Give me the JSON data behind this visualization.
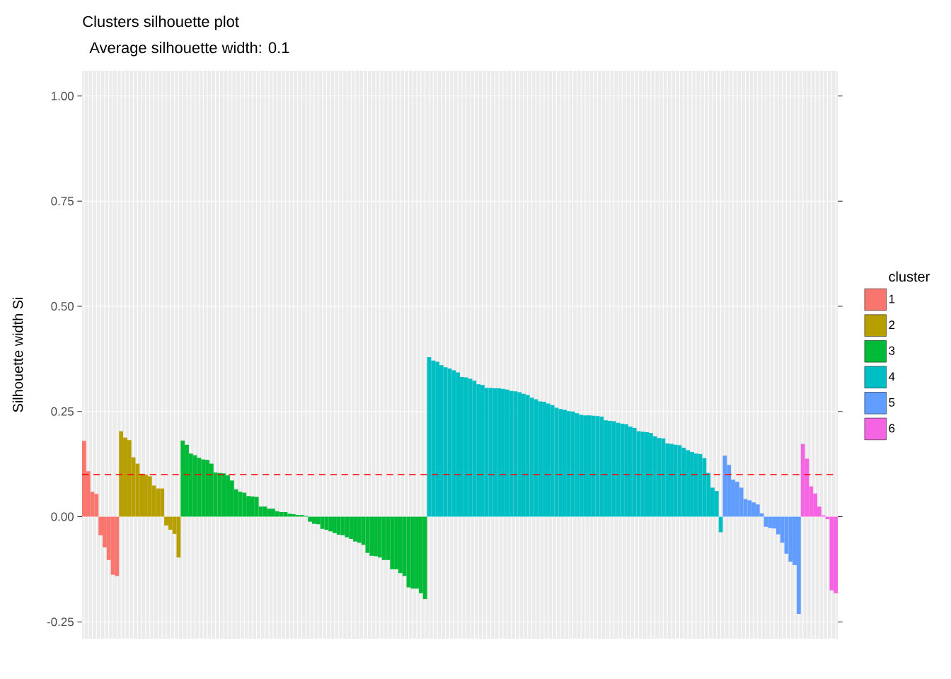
{
  "chart_data": {
    "type": "bar",
    "title": "Clusters silhouette plot",
    "subtitle": " Average silhouette width: 0.1",
    "ylabel": "Silhouette width Si",
    "legend_title": "cluster",
    "legend": "right",
    "grid": true,
    "ylim": [
      -0.29,
      1.06
    ],
    "yticks": [
      -0.25,
      {
        "value": 0,
        "label": "0.00"
      },
      0.25,
      {
        "value": 0.5,
        "label": "0.50"
      },
      0.75,
      {
        "value": 1,
        "label": "1.00"
      }
    ],
    "ref_lines": [
      {
        "axis": "y",
        "value": 0.1,
        "color": "#ff0000",
        "line_style": "dashed"
      }
    ],
    "categories": [
      null,
      null,
      null,
      null,
      null,
      null,
      null,
      null,
      null,
      null,
      null,
      null,
      null,
      null,
      null,
      null,
      null,
      null,
      null,
      null,
      null,
      null,
      null,
      null,
      null,
      null,
      null,
      null,
      null,
      null,
      null,
      null,
      null,
      null,
      null,
      null,
      null,
      null,
      null,
      null,
      null,
      null,
      null,
      null,
      null,
      null,
      null,
      null,
      null,
      null,
      null,
      null,
      null,
      null,
      null,
      null,
      null,
      null,
      null,
      null,
      null,
      null,
      null,
      null,
      null,
      null,
      null,
      null,
      null,
      null,
      null,
      null,
      null,
      null,
      null,
      null,
      null,
      null,
      null,
      null,
      null,
      null,
      null,
      null,
      null,
      null,
      null,
      null,
      null,
      null,
      null,
      null,
      null,
      null,
      null,
      null,
      null,
      null,
      null,
      null,
      null,
      null,
      null,
      null,
      null,
      null,
      null,
      null,
      null,
      null,
      null,
      null,
      null,
      null,
      null,
      null,
      null,
      null,
      null,
      null,
      null,
      null,
      null,
      null,
      null,
      null,
      null,
      null,
      null,
      null,
      null,
      null,
      null,
      null,
      null,
      null,
      null,
      null,
      null,
      null,
      null,
      null,
      null,
      null,
      null,
      null,
      null,
      null,
      null,
      null,
      null,
      null,
      null,
      null,
      null,
      null,
      null,
      null,
      null,
      null,
      null,
      null,
      null,
      null,
      null,
      null,
      null,
      null,
      null,
      null,
      null,
      null,
      null,
      null,
      null,
      null,
      null,
      null,
      null,
      null,
      null,
      null,
      null,
      null
    ],
    "series": [
      {
        "name": "1",
        "color": "#f8766d",
        "values": [
          0.18,
          0.108,
          0.059,
          0.054,
          -0.044,
          -0.073,
          -0.103,
          -0.138,
          -0.141,
          null,
          null,
          null,
          null,
          null,
          null,
          null,
          null,
          null,
          null,
          null,
          null,
          null,
          null,
          null,
          null,
          null,
          null,
          null,
          null,
          null,
          null,
          null,
          null,
          null,
          null,
          null,
          null,
          null,
          null,
          null,
          null,
          null,
          null,
          null,
          null,
          null,
          null,
          null,
          null,
          null,
          null,
          null,
          null,
          null,
          null,
          null,
          null,
          null,
          null,
          null,
          null,
          null,
          null,
          null,
          null,
          null,
          null,
          null,
          null,
          null,
          null,
          null,
          null,
          null,
          null,
          null,
          null,
          null,
          null,
          null,
          null,
          null,
          null,
          null,
          null,
          null,
          null,
          null,
          null,
          null,
          null,
          null,
          null,
          null,
          null,
          null,
          null,
          null,
          null,
          null,
          null,
          null,
          null,
          null,
          null,
          null,
          null,
          null,
          null,
          null,
          null,
          null,
          null,
          null,
          null,
          null,
          null,
          null,
          null,
          null,
          null,
          null,
          null,
          null,
          null,
          null,
          null,
          null,
          null,
          null,
          null,
          null,
          null,
          null,
          null,
          null,
          null,
          null,
          null,
          null,
          null,
          null,
          null,
          null,
          null,
          null,
          null,
          null,
          null,
          null,
          null,
          null,
          null,
          null,
          null,
          null,
          null,
          null,
          null,
          null,
          null,
          null,
          null,
          null,
          null,
          null,
          null,
          null,
          null,
          null,
          null,
          null,
          null,
          null,
          null,
          null,
          null,
          null,
          null,
          null,
          null,
          null,
          null,
          null
        ]
      },
      {
        "name": "2",
        "color": "#b79f00",
        "values": [
          null,
          null,
          null,
          null,
          null,
          null,
          null,
          null,
          null,
          0.203,
          0.188,
          0.182,
          0.141,
          0.126,
          0.102,
          0.1,
          0.096,
          0.074,
          0.067,
          0.067,
          -0.021,
          -0.031,
          -0.041,
          -0.097,
          null,
          null,
          null,
          null,
          null,
          null,
          null,
          null,
          null,
          null,
          null,
          null,
          null,
          null,
          null,
          null,
          null,
          null,
          null,
          null,
          null,
          null,
          null,
          null,
          null,
          null,
          null,
          null,
          null,
          null,
          null,
          null,
          null,
          null,
          null,
          null,
          null,
          null,
          null,
          null,
          null,
          null,
          null,
          null,
          null,
          null,
          null,
          null,
          null,
          null,
          null,
          null,
          null,
          null,
          null,
          null,
          null,
          null,
          null,
          null,
          null,
          null,
          null,
          null,
          null,
          null,
          null,
          null,
          null,
          null,
          null,
          null,
          null,
          null,
          null,
          null,
          null,
          null,
          null,
          null,
          null,
          null,
          null,
          null,
          null,
          null,
          null,
          null,
          null,
          null,
          null,
          null,
          null,
          null,
          null,
          null,
          null,
          null,
          null,
          null,
          null,
          null,
          null,
          null,
          null,
          null,
          null,
          null,
          null,
          null,
          null,
          null,
          null,
          null,
          null,
          null,
          null,
          null,
          null,
          null,
          null,
          null,
          null,
          null,
          null,
          null,
          null,
          null,
          null,
          null,
          null,
          null,
          null,
          null,
          null,
          null,
          null,
          null,
          null,
          null,
          null,
          null,
          null,
          null,
          null,
          null,
          null,
          null,
          null,
          null,
          null,
          null,
          null,
          null,
          null,
          null,
          null,
          null,
          null,
          null
        ]
      },
      {
        "name": "3",
        "color": "#00ba38",
        "values": [
          null,
          null,
          null,
          null,
          null,
          null,
          null,
          null,
          null,
          null,
          null,
          null,
          null,
          null,
          null,
          null,
          null,
          null,
          null,
          null,
          null,
          null,
          null,
          null,
          0.181,
          0.171,
          0.15,
          0.146,
          0.14,
          0.136,
          0.135,
          0.126,
          0.105,
          0.104,
          0.103,
          0.098,
          0.086,
          0.065,
          0.059,
          0.057,
          0.049,
          0.048,
          0.047,
          0.024,
          0.024,
          0.019,
          0.019,
          0.013,
          0.011,
          0.011,
          0.007,
          0.006,
          0.004,
          0.004,
          0.002,
          -0.012,
          -0.017,
          -0.018,
          -0.029,
          -0.031,
          -0.035,
          -0.039,
          -0.043,
          -0.044,
          -0.049,
          -0.053,
          -0.059,
          -0.062,
          -0.067,
          -0.086,
          -0.093,
          -0.094,
          -0.097,
          -0.103,
          -0.103,
          -0.125,
          -0.125,
          -0.134,
          -0.141,
          -0.168,
          -0.171,
          -0.171,
          -0.182,
          -0.196,
          null,
          null,
          null,
          null,
          null,
          null,
          null,
          null,
          null,
          null,
          null,
          null,
          null,
          null,
          null,
          null,
          null,
          null,
          null,
          null,
          null,
          null,
          null,
          null,
          null,
          null,
          null,
          null,
          null,
          null,
          null,
          null,
          null,
          null,
          null,
          null,
          null,
          null,
          null,
          null,
          null,
          null,
          null,
          null,
          null,
          null,
          null,
          null,
          null,
          null,
          null,
          null,
          null,
          null,
          null,
          null,
          null,
          null,
          null,
          null,
          null,
          null,
          null,
          null,
          null,
          null,
          null,
          null,
          null,
          null,
          null,
          null,
          null,
          null,
          null,
          null,
          null,
          null,
          null,
          null,
          null,
          null,
          null,
          null,
          null,
          null,
          null,
          null,
          null,
          null,
          null,
          null,
          null,
          null,
          null,
          null,
          null,
          null,
          null,
          null
        ]
      },
      {
        "name": "4",
        "color": "#00bfc4",
        "values": [
          null,
          null,
          null,
          null,
          null,
          null,
          null,
          null,
          null,
          null,
          null,
          null,
          null,
          null,
          null,
          null,
          null,
          null,
          null,
          null,
          null,
          null,
          null,
          null,
          null,
          null,
          null,
          null,
          null,
          null,
          null,
          null,
          null,
          null,
          null,
          null,
          null,
          null,
          null,
          null,
          null,
          null,
          null,
          null,
          null,
          null,
          null,
          null,
          null,
          null,
          null,
          null,
          null,
          null,
          null,
          null,
          null,
          null,
          null,
          null,
          null,
          null,
          null,
          null,
          null,
          null,
          null,
          null,
          null,
          null,
          null,
          null,
          null,
          null,
          null,
          null,
          null,
          null,
          null,
          null,
          null,
          null,
          null,
          null,
          0.379,
          0.371,
          0.368,
          0.36,
          0.355,
          0.352,
          0.348,
          0.343,
          0.332,
          0.331,
          0.328,
          0.323,
          0.315,
          0.313,
          0.306,
          0.306,
          0.305,
          0.305,
          0.304,
          0.302,
          0.299,
          0.298,
          0.296,
          0.292,
          0.289,
          0.283,
          0.279,
          0.274,
          0.273,
          0.269,
          0.265,
          0.259,
          0.256,
          0.254,
          0.251,
          0.25,
          0.246,
          0.242,
          0.241,
          0.241,
          0.24,
          0.239,
          0.238,
          0.229,
          0.228,
          0.227,
          0.223,
          0.221,
          0.22,
          0.214,
          0.211,
          0.203,
          0.202,
          0.201,
          0.199,
          0.191,
          0.187,
          0.186,
          0.174,
          0.173,
          0.171,
          0.17,
          0.164,
          0.158,
          0.154,
          0.15,
          0.149,
          0.139,
          0.104,
          0.069,
          0.061,
          -0.037,
          null,
          null,
          null,
          null,
          null,
          null,
          null,
          null,
          null,
          null,
          null,
          null,
          null,
          null,
          null,
          null,
          null,
          null,
          null,
          null,
          null,
          null,
          null,
          null,
          null,
          null,
          null,
          null
        ]
      },
      {
        "name": "5",
        "color": "#619cff",
        "values": [
          null,
          null,
          null,
          null,
          null,
          null,
          null,
          null,
          null,
          null,
          null,
          null,
          null,
          null,
          null,
          null,
          null,
          null,
          null,
          null,
          null,
          null,
          null,
          null,
          null,
          null,
          null,
          null,
          null,
          null,
          null,
          null,
          null,
          null,
          null,
          null,
          null,
          null,
          null,
          null,
          null,
          null,
          null,
          null,
          null,
          null,
          null,
          null,
          null,
          null,
          null,
          null,
          null,
          null,
          null,
          null,
          null,
          null,
          null,
          null,
          null,
          null,
          null,
          null,
          null,
          null,
          null,
          null,
          null,
          null,
          null,
          null,
          null,
          null,
          null,
          null,
          null,
          null,
          null,
          null,
          null,
          null,
          null,
          null,
          null,
          null,
          null,
          null,
          null,
          null,
          null,
          null,
          null,
          null,
          null,
          null,
          null,
          null,
          null,
          null,
          null,
          null,
          null,
          null,
          null,
          null,
          null,
          null,
          null,
          null,
          null,
          null,
          null,
          null,
          null,
          null,
          null,
          null,
          null,
          null,
          null,
          null,
          null,
          null,
          null,
          null,
          null,
          null,
          null,
          null,
          null,
          null,
          null,
          null,
          null,
          null,
          null,
          null,
          null,
          null,
          null,
          null,
          null,
          null,
          null,
          null,
          null,
          null,
          null,
          null,
          null,
          null,
          null,
          null,
          null,
          null,
          0.145,
          0.123,
          0.088,
          0.083,
          0.069,
          0.042,
          0.039,
          0.034,
          0.029,
          0.008,
          -0.024,
          -0.027,
          -0.028,
          -0.042,
          -0.062,
          -0.088,
          -0.107,
          -0.115,
          -0.231,
          null,
          null,
          null,
          null,
          null,
          null,
          null,
          null,
          null
        ]
      },
      {
        "name": "6",
        "color": "#f564e3",
        "values": [
          null,
          null,
          null,
          null,
          null,
          null,
          null,
          null,
          null,
          null,
          null,
          null,
          null,
          null,
          null,
          null,
          null,
          null,
          null,
          null,
          null,
          null,
          null,
          null,
          null,
          null,
          null,
          null,
          null,
          null,
          null,
          null,
          null,
          null,
          null,
          null,
          null,
          null,
          null,
          null,
          null,
          null,
          null,
          null,
          null,
          null,
          null,
          null,
          null,
          null,
          null,
          null,
          null,
          null,
          null,
          null,
          null,
          null,
          null,
          null,
          null,
          null,
          null,
          null,
          null,
          null,
          null,
          null,
          null,
          null,
          null,
          null,
          null,
          null,
          null,
          null,
          null,
          null,
          null,
          null,
          null,
          null,
          null,
          null,
          null,
          null,
          null,
          null,
          null,
          null,
          null,
          null,
          null,
          null,
          null,
          null,
          null,
          null,
          null,
          null,
          null,
          null,
          null,
          null,
          null,
          null,
          null,
          null,
          null,
          null,
          null,
          null,
          null,
          null,
          null,
          null,
          null,
          null,
          null,
          null,
          null,
          null,
          null,
          null,
          null,
          null,
          null,
          null,
          null,
          null,
          null,
          null,
          null,
          null,
          null,
          null,
          null,
          null,
          null,
          null,
          null,
          null,
          null,
          null,
          null,
          null,
          null,
          null,
          null,
          null,
          null,
          null,
          null,
          null,
          null,
          null,
          null,
          null,
          null,
          null,
          null,
          null,
          null,
          null,
          null,
          null,
          null,
          null,
          null,
          null,
          null,
          null,
          null,
          null,
          null,
          0.173,
          0.138,
          0.072,
          0.055,
          0.024,
          0.003,
          -0.006,
          -0.175,
          -0.182
        ]
      }
    ]
  }
}
